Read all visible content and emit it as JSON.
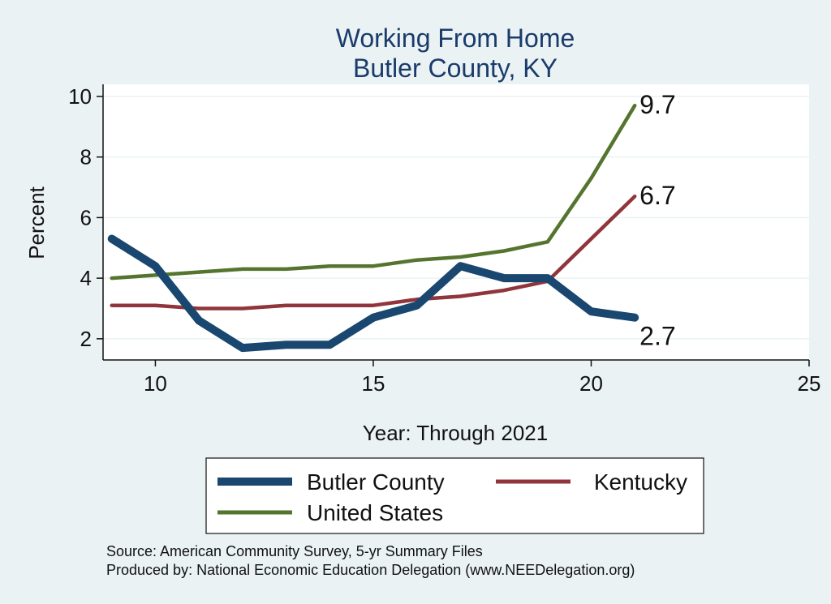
{
  "chart_data": {
    "type": "line",
    "title": "Working From Home",
    "subtitle": "Butler County, KY",
    "xlabel": "Year: Through 2021",
    "ylabel": "Percent",
    "xlim": [
      8.8,
      25
    ],
    "ylim": [
      1.3,
      10.4
    ],
    "xticks": [
      10,
      15,
      20,
      25
    ],
    "yticks": [
      2,
      4,
      6,
      8,
      10
    ],
    "grid": true,
    "legend_position": "bottom",
    "series": [
      {
        "name": "Butler County",
        "color": "#1a476f",
        "x": [
          9,
          10,
          11,
          12,
          13,
          14,
          15,
          16,
          17,
          18,
          19,
          20,
          21
        ],
        "values": [
          5.3,
          4.4,
          2.6,
          1.7,
          1.8,
          1.8,
          2.7,
          3.1,
          4.4,
          4.0,
          4.0,
          2.9,
          2.7
        ],
        "end_label": "2.7"
      },
      {
        "name": "Kentucky",
        "color": "#90353b",
        "x": [
          9,
          10,
          11,
          12,
          13,
          14,
          15,
          16,
          17,
          18,
          19,
          20,
          21
        ],
        "values": [
          3.1,
          3.1,
          3.0,
          3.0,
          3.1,
          3.1,
          3.1,
          3.3,
          3.4,
          3.6,
          3.9,
          5.3,
          6.7
        ],
        "end_label": "6.7"
      },
      {
        "name": "United States",
        "color": "#55752f",
        "x": [
          9,
          10,
          11,
          12,
          13,
          14,
          15,
          16,
          17,
          18,
          19,
          20,
          21
        ],
        "values": [
          4.0,
          4.1,
          4.2,
          4.3,
          4.3,
          4.4,
          4.4,
          4.6,
          4.7,
          4.9,
          5.2,
          7.3,
          9.7
        ],
        "end_label": "9.7"
      }
    ]
  },
  "notes": {
    "source": "Source: American Community Survey, 5-yr Summary Files",
    "produced_by": "Produced by: National Economic Education Delegation (www.NEEDelegation.org)"
  }
}
